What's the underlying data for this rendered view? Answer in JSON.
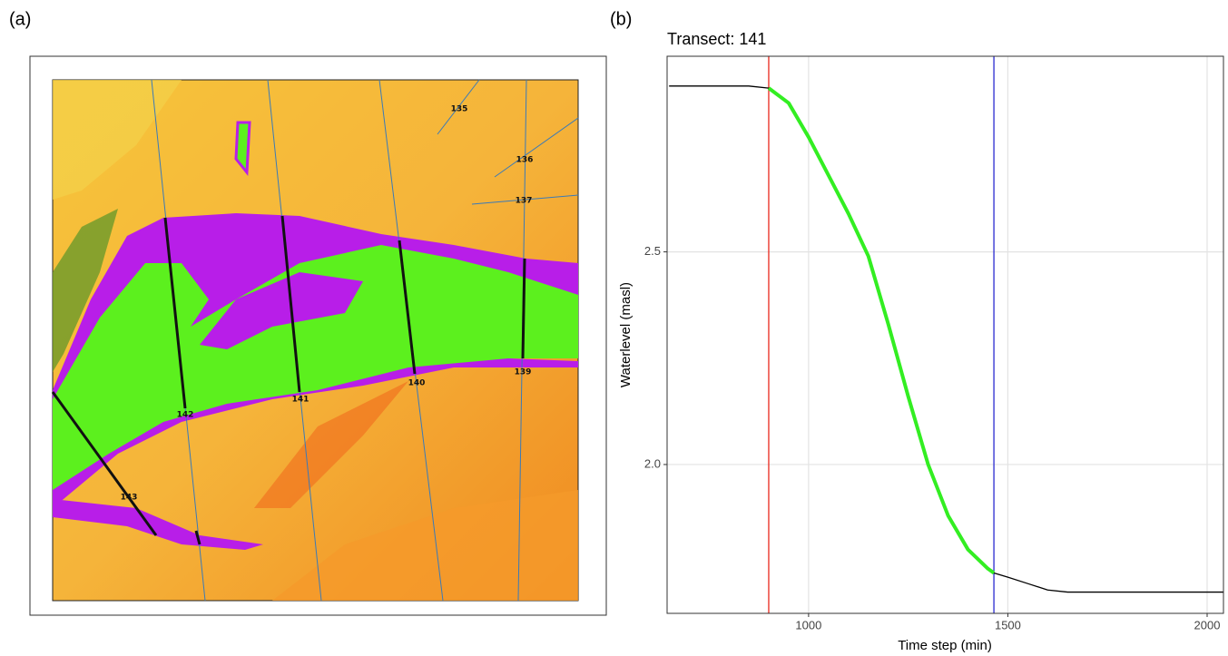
{
  "panels": {
    "a": "(a)",
    "b": "(b)"
  },
  "map": {
    "transects": [
      "135",
      "136",
      "137",
      "139",
      "140",
      "141",
      "142",
      "143"
    ]
  },
  "chart_data": {
    "type": "line",
    "title": "Transect:  141",
    "x_label": "Time step (min)",
    "y_label": "Waterlevel (masl)",
    "x": [
      650,
      700,
      750,
      800,
      850,
      900,
      950,
      1000,
      1050,
      1100,
      1150,
      1200,
      1250,
      1300,
      1350,
      1400,
      1450,
      1465,
      1500,
      1550,
      1600,
      1650,
      1700,
      1750,
      1800,
      1850,
      1900,
      1950,
      2000,
      2040
    ],
    "series": [
      {
        "color": "#000000",
        "values": [
          2.89,
          2.89,
          2.89,
          2.89,
          2.89,
          2.885,
          2.85,
          2.77,
          2.68,
          2.59,
          2.49,
          2.33,
          2.16,
          2.0,
          1.88,
          1.8,
          1.755,
          1.745,
          1.735,
          1.72,
          1.705,
          1.7,
          1.7,
          1.7,
          1.7,
          1.7,
          1.7,
          1.7,
          1.7,
          1.7
        ]
      },
      {
        "color": "#33ee22",
        "values": [
          null,
          null,
          null,
          null,
          null,
          2.885,
          2.85,
          2.77,
          2.68,
          2.59,
          2.49,
          2.33,
          2.16,
          2.0,
          1.88,
          1.8,
          1.755,
          1.745,
          null,
          null,
          null,
          null,
          null,
          null,
          null,
          null,
          null,
          null,
          null,
          null
        ]
      }
    ],
    "vlines": [
      {
        "value": 900,
        "color": "#e8281e"
      },
      {
        "value": 1465,
        "color": "#2a2ad0"
      }
    ],
    "xlim": [
      645,
      2041
    ],
    "ylim": [
      1.65,
      2.96
    ],
    "xticks": [
      1000,
      1500,
      2000
    ],
    "yticks": [
      {
        "value": 2,
        "label": "2.0"
      },
      2.5
    ],
    "grid": true
  }
}
